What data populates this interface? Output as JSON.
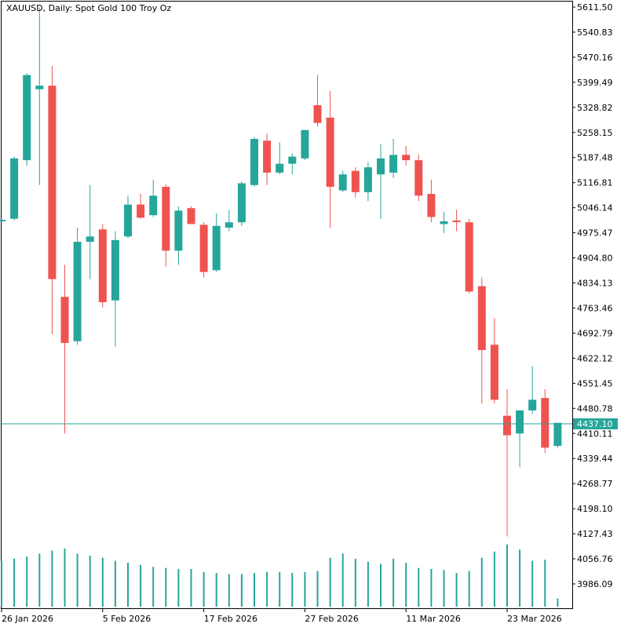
{
  "window": {
    "title": "XAUUSD, Daily:  Spot Gold 100 Troy Oz"
  },
  "colors": {
    "bull": "#26a69a",
    "bear": "#ef5350",
    "volume": "#26a69a",
    "current_price_line": "#26a69a",
    "axis": "#000000"
  },
  "chart_data": {
    "type": "candlestick",
    "symbol": "XAUUSD",
    "timeframe": "Daily",
    "title": "XAUUSD, Daily:  Spot Gold 100 Troy Oz",
    "current_price": 4437.1,
    "current_price_label": "4437.10",
    "ylim": [
      3937.0,
      5625.0
    ],
    "y_ticks": [
      "5611.50",
      "5540.83",
      "5470.16",
      "5399.49",
      "5328.82",
      "5258.15",
      "5187.48",
      "5116.81",
      "5046.14",
      "4975.47",
      "4904.80",
      "4834.13",
      "4763.46",
      "4692.79",
      "4622.12",
      "4551.45",
      "4480.78",
      "4410.11",
      "4339.44",
      "4268.77",
      "4198.10",
      "4127.43",
      "4056.76",
      "3986.09"
    ],
    "x_ticks": [
      {
        "label": "26 Jan 2026",
        "index": 0
      },
      {
        "label": "5 Feb 2026",
        "index": 8
      },
      {
        "label": "17 Feb 2026",
        "index": 16
      },
      {
        "label": "27 Feb 2026",
        "index": 24
      },
      {
        "label": "11 Mar 2026",
        "index": 32
      },
      {
        "label": "23 Mar 2026",
        "index": 40
      }
    ],
    "candles": [
      {
        "o": 5010,
        "h": 5015,
        "l": 5005,
        "c": 5012
      },
      {
        "o": 5015,
        "h": 5190,
        "l": 5010,
        "c": 5185
      },
      {
        "o": 5180,
        "h": 5425,
        "l": 5165,
        "c": 5420
      },
      {
        "o": 5380,
        "h": 5610,
        "l": 5110,
        "c": 5390
      },
      {
        "o": 5390,
        "h": 5445,
        "l": 4690,
        "c": 4845
      },
      {
        "o": 4795,
        "h": 4885,
        "l": 4410,
        "c": 4665
      },
      {
        "o": 4670,
        "h": 4990,
        "l": 4660,
        "c": 4950
      },
      {
        "o": 4950,
        "h": 5110,
        "l": 4845,
        "c": 4965
      },
      {
        "o": 4985,
        "h": 5000,
        "l": 4765,
        "c": 4780
      },
      {
        "o": 4785,
        "h": 4980,
        "l": 4655,
        "c": 4955
      },
      {
        "o": 4965,
        "h": 5080,
        "l": 4960,
        "c": 5055
      },
      {
        "o": 5055,
        "h": 5085,
        "l": 5015,
        "c": 5018
      },
      {
        "o": 5025,
        "h": 5125,
        "l": 5020,
        "c": 5080
      },
      {
        "o": 5105,
        "h": 5112,
        "l": 4880,
        "c": 4925
      },
      {
        "o": 4925,
        "h": 5050,
        "l": 4885,
        "c": 5038
      },
      {
        "o": 5045,
        "h": 5050,
        "l": 5000,
        "c": 5000
      },
      {
        "o": 4998,
        "h": 5005,
        "l": 4850,
        "c": 4865
      },
      {
        "o": 4870,
        "h": 5030,
        "l": 4865,
        "c": 4995
      },
      {
        "o": 4990,
        "h": 5040,
        "l": 4980,
        "c": 5005
      },
      {
        "o": 5005,
        "h": 5120,
        "l": 4995,
        "c": 5115
      },
      {
        "o": 5110,
        "h": 5245,
        "l": 5105,
        "c": 5240
      },
      {
        "o": 5235,
        "h": 5255,
        "l": 5110,
        "c": 5145
      },
      {
        "o": 5145,
        "h": 5230,
        "l": 5140,
        "c": 5170
      },
      {
        "o": 5170,
        "h": 5200,
        "l": 5140,
        "c": 5190
      },
      {
        "o": 5185,
        "h": 5265,
        "l": 5180,
        "c": 5265
      },
      {
        "o": 5335,
        "h": 5420,
        "l": 5275,
        "c": 5285
      },
      {
        "o": 5300,
        "h": 5375,
        "l": 4990,
        "c": 5105
      },
      {
        "o": 5095,
        "h": 5150,
        "l": 5090,
        "c": 5140
      },
      {
        "o": 5150,
        "h": 5160,
        "l": 5075,
        "c": 5090
      },
      {
        "o": 5090,
        "h": 5175,
        "l": 5065,
        "c": 5160
      },
      {
        "o": 5140,
        "h": 5225,
        "l": 5015,
        "c": 5185
      },
      {
        "o": 5145,
        "h": 5240,
        "l": 5130,
        "c": 5195
      },
      {
        "o": 5195,
        "h": 5220,
        "l": 5165,
        "c": 5180
      },
      {
        "o": 5180,
        "h": 5195,
        "l": 5065,
        "c": 5080
      },
      {
        "o": 5085,
        "h": 5125,
        "l": 5005,
        "c": 5020
      },
      {
        "o": 5000,
        "h": 5035,
        "l": 4975,
        "c": 5008
      },
      {
        "o": 5010,
        "h": 5040,
        "l": 4980,
        "c": 5008
      },
      {
        "o": 5005,
        "h": 5015,
        "l": 4805,
        "c": 4810
      },
      {
        "o": 4825,
        "h": 4850,
        "l": 4495,
        "c": 4645
      },
      {
        "o": 4660,
        "h": 4735,
        "l": 4495,
        "c": 4505
      },
      {
        "o": 4460,
        "h": 4535,
        "l": 4120,
        "c": 4405
      },
      {
        "o": 4410,
        "h": 4475,
        "l": 4315,
        "c": 4475
      },
      {
        "o": 4475,
        "h": 4600,
        "l": 4465,
        "c": 4505
      },
      {
        "o": 4510,
        "h": 4535,
        "l": 4355,
        "c": 4370
      },
      {
        "o": 4375,
        "h": 4440,
        "l": 4370,
        "c": 4440
      }
    ],
    "volume": [
      0.45,
      0.47,
      0.49,
      0.52,
      0.55,
      0.57,
      0.52,
      0.5,
      0.48,
      0.45,
      0.43,
      0.41,
      0.39,
      0.38,
      0.37,
      0.37,
      0.34,
      0.33,
      0.32,
      0.32,
      0.33,
      0.34,
      0.34,
      0.33,
      0.34,
      0.35,
      0.48,
      0.52,
      0.47,
      0.44,
      0.42,
      0.47,
      0.43,
      0.38,
      0.37,
      0.36,
      0.33,
      0.35,
      0.48,
      0.54,
      0.61,
      0.56,
      0.45,
      0.46,
      0.08
    ],
    "xlabel": "",
    "ylabel": ""
  }
}
